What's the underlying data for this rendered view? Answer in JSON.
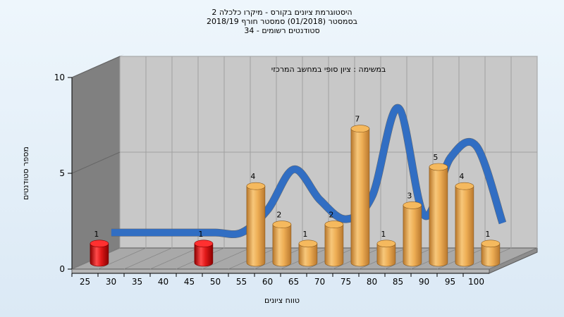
{
  "chart_data": {
    "type": "bar",
    "title": [
      "היסטוגרמת ציונים בקורס - מיקרו כלכלה 2",
      "בסמסטר (01/2018) סמסטר חורף 2018/19",
      "סטודנטים רשומים - 34"
    ],
    "annotation": "במשימה : ציון סופי במחשב המרכזי",
    "xlabel": "טווח ציונים",
    "ylabel": "מספר סטודנטים",
    "categories": [
      "25",
      "30",
      "35",
      "40",
      "45",
      "50",
      "55",
      "60",
      "65",
      "70",
      "75",
      "80",
      "85",
      "90",
      "95",
      "100"
    ],
    "values": [
      1,
      0,
      0,
      0,
      1,
      0,
      4,
      2,
      1,
      2,
      7,
      1,
      3,
      5,
      4,
      1
    ],
    "bar_colors": [
      "red",
      "none",
      "none",
      "none",
      "red",
      "none",
      "gold",
      "gold",
      "gold",
      "gold",
      "gold",
      "gold",
      "gold",
      "gold",
      "gold",
      "gold"
    ],
    "curve": [
      1.3,
      1.3,
      1.3,
      1.3,
      1.3,
      1.3,
      2.5,
      4.6,
      3.0,
      2.0,
      3.2,
      7.8,
      2.2,
      5.2,
      5.8,
      1.8
    ],
    "ylim": [
      0,
      10
    ],
    "yticks": [
      0,
      5,
      10
    ],
    "grid": true,
    "colors": {
      "red": "#d41111",
      "gold": "#e9a64a",
      "curve": "#2e6fc8",
      "curve_shadow": "#666666",
      "wall": "#c8c8c8",
      "side": "#808080"
    }
  }
}
